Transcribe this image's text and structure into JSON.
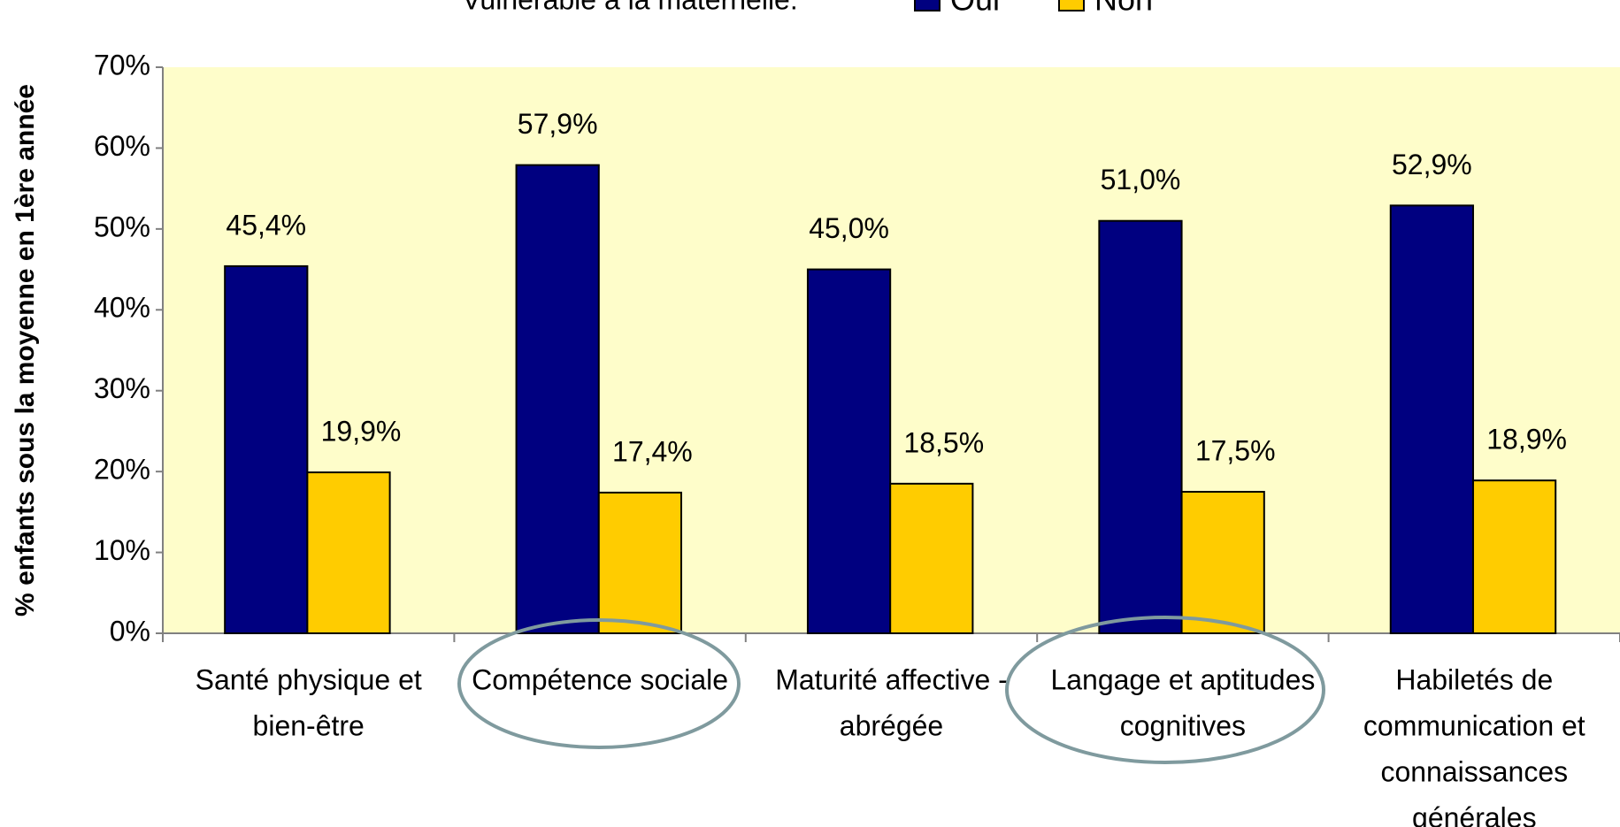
{
  "chart_data": {
    "type": "bar",
    "title": "Vulnérable à la maternelle:",
    "y_label": "% enfants sous la moyenne en 1ère année",
    "categories": [
      [
        "Santé physique et",
        "bien-être"
      ],
      [
        "Compétence sociale"
      ],
      [
        "Maturité affective -",
        "abrégée"
      ],
      [
        "Langage et aptitudes",
        "cognitives"
      ],
      [
        "Habiletés de",
        "communication et",
        "connaissances",
        "générales"
      ]
    ],
    "series": [
      {
        "name": "Oui",
        "color": "#000080",
        "values": [
          45.4,
          57.9,
          45.0,
          51.0,
          52.9
        ],
        "value_labels": [
          "45,4%",
          "57,9%",
          "45,0%",
          "51,0%",
          "52,9%"
        ]
      },
      {
        "name": "Non",
        "color": "#ffcc00",
        "values": [
          19.9,
          17.4,
          18.5,
          17.5,
          18.9
        ],
        "value_labels": [
          "19,9%",
          "17,4%",
          "18,5%",
          "17,5%",
          "18,9%"
        ]
      }
    ],
    "ylim": [
      0,
      70
    ],
    "yticks": [
      {
        "value": 0,
        "label": "0%"
      },
      {
        "value": 10,
        "label": "10%"
      },
      {
        "value": 20,
        "label": "20%"
      },
      {
        "value": 30,
        "label": "30%"
      },
      {
        "value": 40,
        "label": "40%"
      },
      {
        "value": 50,
        "label": "50%"
      },
      {
        "value": 60,
        "label": "60%"
      },
      {
        "value": 70,
        "label": "70%"
      }
    ],
    "plot_background": "#fefdca"
  }
}
